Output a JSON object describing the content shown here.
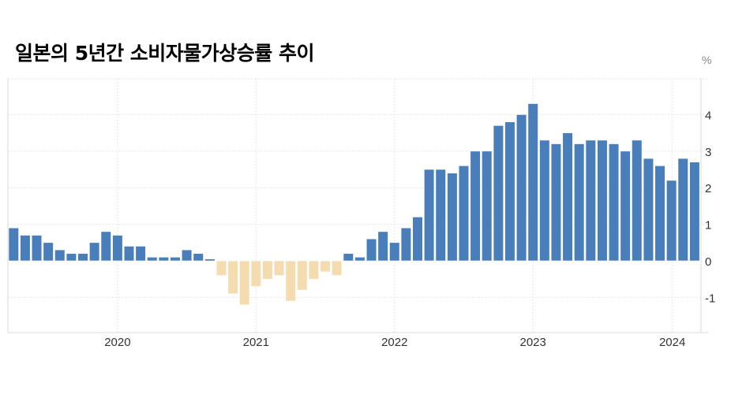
{
  "header": {
    "title": "일본의 5년간 소비자물가상승률 추이"
  },
  "chart_data": {
    "type": "bar",
    "title": "일본의 5년간 소비자물가상승률 추이",
    "xlabel": "",
    "ylabel": "%",
    "unit_label": "%",
    "ylim": [
      -2,
      5
    ],
    "grid": true,
    "legend": null,
    "colors": {
      "positive": "#4a7ebb",
      "negative": "#f5dbb0",
      "grid": "#e6e6e6",
      "axis": "#d9d9d9",
      "text": "#333333"
    },
    "y_ticks": [
      "4",
      "3",
      "2",
      "1",
      "0",
      "-1"
    ],
    "x_ticks": [
      {
        "label": "2020",
        "index": 9
      },
      {
        "label": "2021",
        "index": 21
      },
      {
        "label": "2022",
        "index": 33
      },
      {
        "label": "2023",
        "index": 45
      },
      {
        "label": "2024",
        "index": 57
      }
    ],
    "categories": [
      "2019-04",
      "2019-05",
      "2019-06",
      "2019-07",
      "2019-08",
      "2019-09",
      "2019-10",
      "2019-11",
      "2019-12",
      "2020-01",
      "2020-02",
      "2020-03",
      "2020-04",
      "2020-05",
      "2020-06",
      "2020-07",
      "2020-08",
      "2020-09",
      "2020-10",
      "2020-11",
      "2020-12",
      "2021-01",
      "2021-02",
      "2021-03",
      "2021-04",
      "2021-05",
      "2021-06",
      "2021-07",
      "2021-08",
      "2021-09",
      "2021-10",
      "2021-11",
      "2021-12",
      "2022-01",
      "2022-02",
      "2022-03",
      "2022-04",
      "2022-05",
      "2022-06",
      "2022-07",
      "2022-08",
      "2022-09",
      "2022-10",
      "2022-11",
      "2022-12",
      "2023-01",
      "2023-02",
      "2023-03",
      "2023-04",
      "2023-05",
      "2023-06",
      "2023-07",
      "2023-08",
      "2023-09",
      "2023-10",
      "2023-11",
      "2023-12",
      "2024-01",
      "2024-02",
      "2024-03"
    ],
    "values": [
      0.9,
      0.7,
      0.7,
      0.5,
      0.3,
      0.2,
      0.2,
      0.5,
      0.8,
      0.7,
      0.4,
      0.4,
      0.1,
      0.1,
      0.1,
      0.3,
      0.2,
      0.05,
      -0.4,
      -0.9,
      -1.2,
      -0.7,
      -0.5,
      -0.4,
      -1.1,
      -0.8,
      -0.5,
      -0.3,
      -0.4,
      0.2,
      0.1,
      0.6,
      0.8,
      0.5,
      0.9,
      1.2,
      2.5,
      2.5,
      2.4,
      2.6,
      3.0,
      3.0,
      3.7,
      3.8,
      4.0,
      4.3,
      3.3,
      3.2,
      3.5,
      3.2,
      3.3,
      3.3,
      3.2,
      3.0,
      3.3,
      2.8,
      2.6,
      2.2,
      2.8,
      2.7
    ]
  }
}
